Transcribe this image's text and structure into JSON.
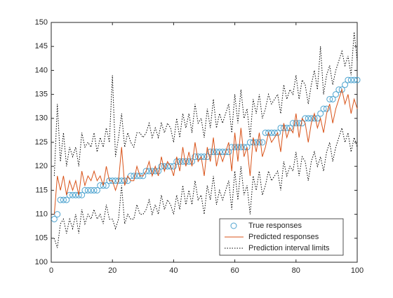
{
  "chart_data": {
    "type": "line",
    "x": [
      1,
      2,
      3,
      4,
      5,
      6,
      7,
      8,
      9,
      10,
      11,
      12,
      13,
      14,
      15,
      16,
      17,
      18,
      19,
      20,
      21,
      22,
      23,
      24,
      25,
      26,
      27,
      28,
      29,
      30,
      31,
      32,
      33,
      34,
      35,
      36,
      37,
      38,
      39,
      40,
      41,
      42,
      43,
      44,
      45,
      46,
      47,
      48,
      49,
      50,
      51,
      52,
      53,
      54,
      55,
      56,
      57,
      58,
      59,
      60,
      61,
      62,
      63,
      64,
      65,
      66,
      67,
      68,
      69,
      70,
      71,
      72,
      73,
      74,
      75,
      76,
      77,
      78,
      79,
      80,
      81,
      82,
      83,
      84,
      85,
      86,
      87,
      88,
      89,
      90,
      91,
      92,
      93,
      94,
      95,
      96,
      97,
      98,
      99,
      100
    ],
    "series": [
      {
        "name": "True responses",
        "style": "markers",
        "color": "#4DA3CF",
        "values": [
          109,
          110,
          113,
          113,
          113,
          114,
          114,
          114,
          114,
          114,
          115,
          115,
          115,
          115,
          115,
          116,
          116,
          116,
          117,
          117,
          117,
          117,
          117,
          117,
          117,
          118,
          118,
          118,
          118,
          118,
          119,
          119,
          119,
          119,
          119,
          120,
          120,
          120,
          120,
          120,
          121,
          121,
          121,
          121,
          121,
          121,
          122,
          122,
          122,
          122,
          122,
          123,
          123,
          123,
          123,
          123,
          123,
          123,
          124,
          124,
          124,
          124,
          124,
          124,
          125,
          125,
          125,
          125,
          125,
          127,
          127,
          127,
          127,
          127,
          128,
          128,
          128,
          128,
          129,
          129,
          129,
          129,
          130,
          130,
          130,
          130,
          130,
          131,
          132,
          132,
          134,
          134,
          135,
          136,
          136,
          137,
          138,
          138,
          138,
          138
        ]
      },
      {
        "name": "Predicted responses",
        "style": "solid",
        "color": "#D95319",
        "values": [
          110,
          118,
          115,
          118,
          114,
          117,
          115,
          117,
          114,
          119,
          116,
          118,
          117,
          119,
          117,
          118,
          116,
          120,
          117,
          117,
          115,
          117,
          124,
          116,
          118,
          117,
          117,
          120,
          118,
          118,
          119,
          121,
          118,
          120,
          118,
          122,
          119,
          121,
          120,
          118,
          122,
          119,
          124,
          120,
          123,
          120,
          125,
          121,
          122,
          118,
          124,
          121,
          126,
          120,
          123,
          121,
          123,
          125,
          119,
          127,
          121,
          128,
          122,
          124,
          118,
          126,
          123,
          127,
          122,
          124,
          127,
          125,
          126,
          127,
          123,
          129,
          126,
          128,
          127,
          131,
          126,
          130,
          129,
          125,
          129,
          131,
          128,
          130,
          127,
          131,
          133,
          129,
          132,
          134,
          136,
          133,
          135,
          131,
          134,
          132
        ]
      },
      {
        "name": "Prediction interval limits",
        "style": "dotted",
        "color": "#000000",
        "values": [
          118,
          133,
          121,
          127,
          120,
          124,
          122,
          124,
          120,
          127,
          124,
          125,
          124,
          127,
          123,
          126,
          124,
          128,
          125,
          139,
          122,
          126,
          131,
          124,
          127,
          125,
          124,
          127,
          127,
          126,
          127,
          129,
          126,
          128,
          126,
          129,
          127,
          129,
          128,
          125,
          130,
          126,
          131,
          128,
          131,
          127,
          133,
          129,
          130,
          126,
          132,
          128,
          134,
          128,
          131,
          129,
          131,
          133,
          127,
          135,
          129,
          136,
          130,
          132,
          126,
          134,
          131,
          135,
          130,
          132,
          135,
          133,
          134,
          135,
          131,
          137,
          134,
          136,
          135,
          139,
          134,
          138,
          137,
          133,
          137,
          140,
          136,
          145,
          135,
          139,
          141,
          137,
          140,
          142,
          144,
          141,
          143,
          139,
          148,
          142
        ]
      },
      {
        "style": "dotted",
        "color": "#000000",
        "values": [
          105,
          103,
          108,
          109,
          106,
          109,
          107,
          110,
          106,
          111,
          108,
          110,
          109,
          111,
          109,
          110,
          108,
          112,
          109,
          109,
          107,
          109,
          116,
          108,
          110,
          109,
          109,
          112,
          110,
          110,
          111,
          113,
          110,
          112,
          110,
          114,
          111,
          113,
          112,
          110,
          114,
          111,
          116,
          112,
          115,
          112,
          117,
          113,
          114,
          110,
          116,
          113,
          118,
          112,
          115,
          113,
          115,
          117,
          111,
          119,
          113,
          120,
          114,
          116,
          110,
          118,
          115,
          119,
          114,
          116,
          119,
          117,
          118,
          119,
          115,
          121,
          118,
          120,
          119,
          123,
          118,
          122,
          121,
          117,
          121,
          123,
          120,
          122,
          119,
          123,
          125,
          121,
          124,
          126,
          128,
          125,
          127,
          123,
          126,
          124
        ]
      }
    ],
    "xlim": [
      0,
      100
    ],
    "xticks": [
      0,
      20,
      40,
      60,
      80,
      100
    ],
    "ylim": [
      100,
      150
    ],
    "yticks": [
      100,
      105,
      110,
      115,
      120,
      125,
      130,
      135,
      140,
      145,
      150
    ],
    "legend": "lower right"
  }
}
